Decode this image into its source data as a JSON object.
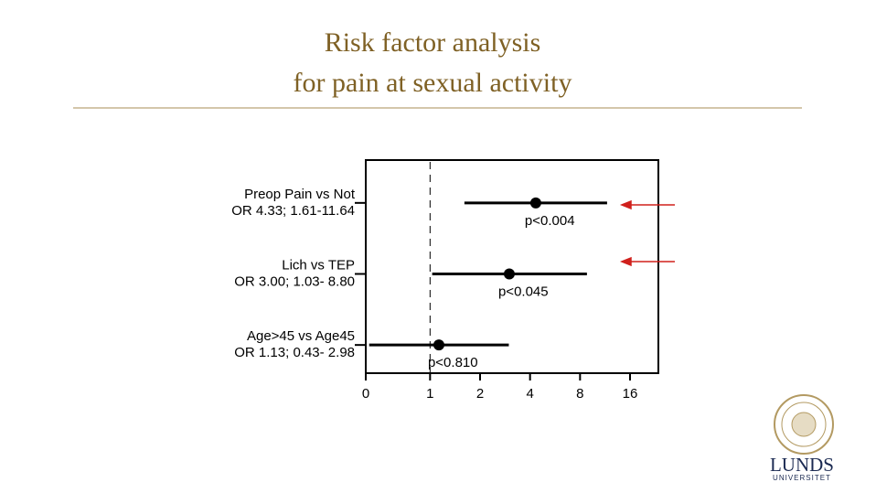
{
  "chart_data": {
    "type": "forest",
    "title": [
      "Risk factor analysis",
      "for pain at sexual activity"
    ],
    "rows": [
      {
        "label": "Preop Pain vs Not",
        "or_label": "OR  4.33;  1.61-11.64",
        "or": 4.33,
        "ci_low": 1.61,
        "ci_high": 11.64,
        "p_label": "p<0.004"
      },
      {
        "label": "Lich vs TEP",
        "or_label": "OR  3.00;  1.03- 8.80",
        "or": 3.0,
        "ci_low": 1.03,
        "ci_high": 8.8,
        "p_label": "p<0.045"
      },
      {
        "label": "Age>45  vs  Age45",
        "or_label": "OR  1.13;  0.43- 2.98",
        "or": 1.13,
        "ci_low": 0.43,
        "ci_high": 2.98,
        "p_label": "p<0.810"
      }
    ],
    "log_scale": true,
    "reference": 1,
    "xlim": [
      0.41,
      23.7
    ],
    "xticks": [
      {
        "value": 0.41,
        "label": "0"
      },
      1,
      2,
      4,
      8,
      16
    ],
    "color": "#000000"
  },
  "logo": {
    "name": "LUNDS",
    "subtitle": "UNIVERSITET"
  }
}
